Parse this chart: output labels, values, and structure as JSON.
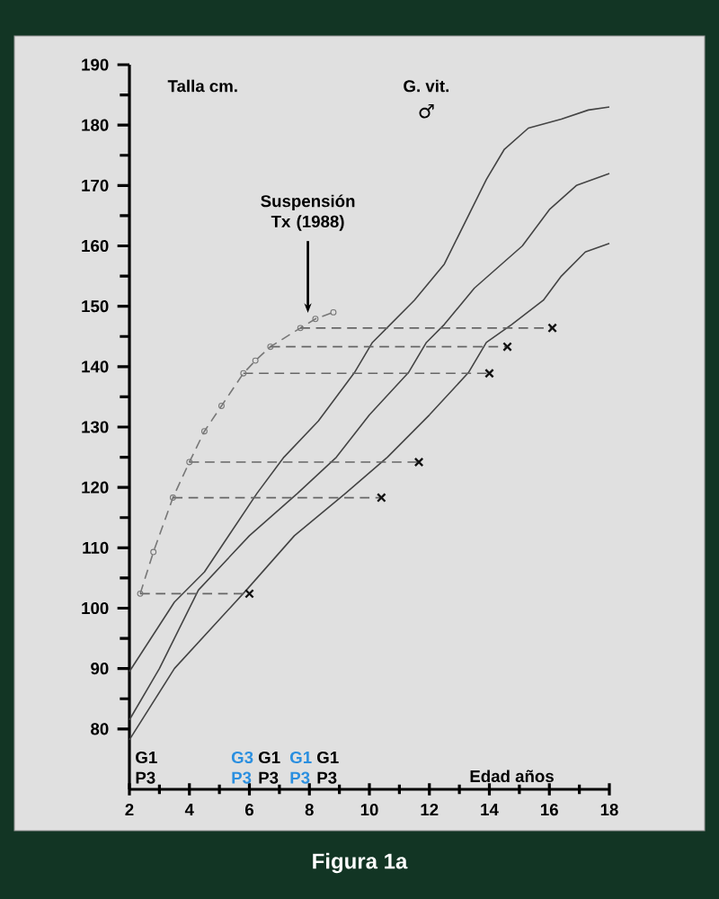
{
  "chart_data": {
    "type": "line",
    "xlabel": "Edad años",
    "ylabel": "Talla cm.",
    "xlim": [
      2,
      18
    ],
    "xticks": [
      2,
      4,
      6,
      8,
      10,
      12,
      14,
      16,
      18
    ],
    "ylim": [
      70,
      190
    ],
    "yticks": [
      80,
      90,
      100,
      110,
      120,
      130,
      140,
      150,
      160,
      170,
      180,
      190
    ],
    "series": [
      {
        "color": "#444444",
        "x": [
          2,
          3.5,
          4.5,
          6.25,
          7.15,
          8.3,
          9.5,
          10.1,
          10.7,
          11.5,
          12.5,
          13.1,
          13.9,
          14.5,
          15.3,
          16.4,
          17.3,
          18
        ],
        "values": [
          89.5,
          101,
          106,
          119,
          125,
          131,
          139,
          144,
          147,
          151,
          157,
          163,
          171,
          176,
          179.5,
          181,
          182.5,
          183
        ],
        "marker": "none",
        "line_style": "solid"
      },
      {
        "color": "#444444",
        "x": [
          2,
          3,
          4.3,
          6,
          7.6,
          8.9,
          10,
          11.3,
          11.9,
          12.5,
          13.5,
          15.1,
          16,
          16.9,
          18
        ],
        "values": [
          81.5,
          90,
          103,
          112,
          119,
          125,
          132,
          139,
          144,
          147,
          153,
          160,
          166,
          170,
          172
        ],
        "marker": "none",
        "line_style": "solid"
      },
      {
        "color": "#444444",
        "x": [
          2,
          3.5,
          5.9,
          7.5,
          9.2,
          10.6,
          12,
          13.3,
          13.9,
          14.75,
          15.8,
          16.4,
          17.2,
          18
        ],
        "values": [
          78.2,
          90,
          103,
          112,
          119,
          125,
          132,
          139,
          144,
          147,
          151,
          155,
          159,
          160.4
        ],
        "marker": "none",
        "line_style": "solid"
      },
      {
        "color": "#777777",
        "x": [
          2.36,
          2.8,
          3.45,
          4.0,
          4.5,
          5.07,
          5.8,
          6.2,
          6.7,
          7.7,
          8.2,
          8.8
        ],
        "values": [
          102.4,
          109.3,
          118.3,
          124.2,
          129.3,
          133.5,
          138.9,
          141,
          143.3,
          146.4,
          147.9,
          149
        ],
        "marker": "circle",
        "line_style": "dashed"
      },
      {
        "color": "#666666",
        "x": [
          2.36,
          6.0
        ],
        "values": [
          102.4,
          102.4
        ],
        "marker": "none",
        "line_style": "dashed"
      },
      {
        "color": "#666666",
        "x": [
          3.45,
          10.4
        ],
        "values": [
          118.3,
          118.3
        ],
        "marker": "none",
        "line_style": "dashed"
      },
      {
        "color": "#666666",
        "x": [
          4.0,
          11.65
        ],
        "values": [
          124.2,
          124.2
        ],
        "marker": "none",
        "line_style": "dashed"
      },
      {
        "color": "#666666",
        "x": [
          5.8,
          14.0
        ],
        "values": [
          138.9,
          138.9
        ],
        "marker": "none",
        "line_style": "dashed"
      },
      {
        "color": "#666666",
        "x": [
          6.7,
          14.6
        ],
        "values": [
          143.3,
          143.3
        ],
        "marker": "none",
        "line_style": "dashed"
      },
      {
        "color": "#666666",
        "x": [
          7.7,
          16.1
        ],
        "values": [
          146.4,
          146.4
        ],
        "marker": "none",
        "line_style": "dashed"
      },
      {
        "type": "scatter",
        "color": "#111111",
        "x": [
          6.0,
          10.4,
          11.65,
          14.0,
          14.6,
          16.1
        ],
        "values": [
          102.4,
          118.3,
          124.2,
          138.9,
          143.3,
          146.4
        ],
        "marker": "cross"
      }
    ],
    "annotations": [
      "G. vit.",
      "♂",
      {
        "text": "Suspensión Tx (1988)",
        "x": 7.95,
        "y": 148.3
      },
      "G1 P3",
      "G3 P3",
      "G1 P3",
      "G1 P3",
      "G1 P3",
      "Figura 1a"
    ]
  }
}
